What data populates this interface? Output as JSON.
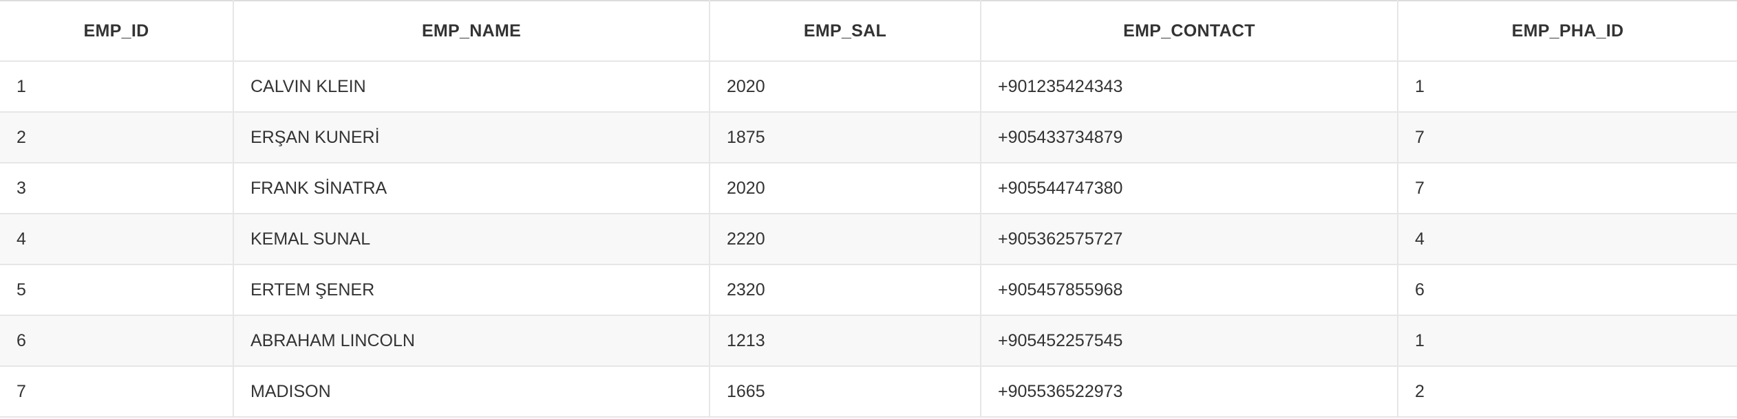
{
  "table": {
    "headers": [
      "EMP_ID",
      "EMP_NAME",
      "EMP_SAL",
      "EMP_CONTACT",
      "EMP_PHA_ID"
    ],
    "rows": [
      [
        "1",
        "CALVIN KLEIN",
        "2020",
        "+901235424343",
        "1"
      ],
      [
        "2",
        "ERŞAN KUNERİ",
        "1875",
        "+905433734879",
        "7"
      ],
      [
        "3",
        "FRANK SİNATRA",
        "2020",
        "+905544747380",
        "7"
      ],
      [
        "4",
        "KEMAL SUNAL",
        "2220",
        "+905362575727",
        "4"
      ],
      [
        "5",
        "ERTEM ŞENER",
        "2320",
        "+905457855968",
        "6"
      ],
      [
        "6",
        "ABRAHAM LINCOLN",
        "1213",
        "+905452257545",
        "1"
      ],
      [
        "7",
        "MADISON",
        "1665",
        "+905536522973",
        "2"
      ]
    ]
  },
  "colors": {
    "text": "#333333",
    "border": "#e6e6e6",
    "row_stripe": "#f8f8f8",
    "background": "#ffffff"
  }
}
